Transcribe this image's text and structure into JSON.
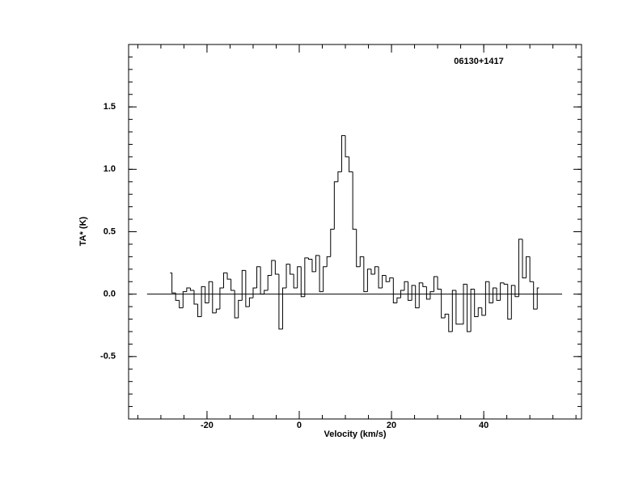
{
  "chart_data": {
    "type": "step",
    "annotation": "06130+1417",
    "xlabel": "Velocity (km/s)",
    "ylabel": "TA* (K)",
    "xlim": [
      -37,
      61.2
    ],
    "ylim": [
      -1,
      2
    ],
    "xticks": [
      -20,
      0,
      20,
      40
    ],
    "yticks": [
      -0.5,
      {
        "value": 0,
        "label": "0.0"
      },
      0.5,
      {
        "value": 1,
        "label": "1.0"
      },
      1.5
    ],
    "color": "#000000",
    "baseline": {
      "y": 0,
      "x": [
        -33,
        57
      ]
    },
    "x": [
      -28.0,
      -27.2,
      -26.4,
      -25.6,
      -24.8,
      -24.0,
      -23.2,
      -22.4,
      -21.6,
      -20.8,
      -20.0,
      -19.2,
      -18.4,
      -17.6,
      -16.8,
      -16.0,
      -15.2,
      -14.4,
      -13.6,
      -12.8,
      -12.0,
      -11.2,
      -10.4,
      -9.6,
      -8.8,
      -8.0,
      -7.2,
      -6.4,
      -5.6,
      -4.8,
      -4.0,
      -3.2,
      -2.4,
      -1.6,
      -0.8,
      0.0,
      0.8,
      1.6,
      2.4,
      3.2,
      4.0,
      4.8,
      5.6,
      6.4,
      7.2,
      8.0,
      8.8,
      9.6,
      10.4,
      11.2,
      12.0,
      12.8,
      13.6,
      14.4,
      15.2,
      16.0,
      16.8,
      17.6,
      18.4,
      19.2,
      20.0,
      20.8,
      21.6,
      22.4,
      23.2,
      24.0,
      24.8,
      25.6,
      26.4,
      27.2,
      28.0,
      28.8,
      29.6,
      30.4,
      31.2,
      32.0,
      32.8,
      33.6,
      34.4,
      35.2,
      36.0,
      36.8,
      37.6,
      38.4,
      39.2,
      40.0,
      40.8,
      41.6,
      42.4,
      43.2,
      44.0,
      44.8,
      45.6,
      46.4,
      47.2,
      48.0,
      48.8,
      49.6,
      50.4,
      51.2,
      52.0
    ],
    "values": [
      0.17,
      0.01,
      -0.05,
      -0.11,
      0.02,
      0.05,
      0.03,
      -0.08,
      -0.18,
      0.06,
      -0.07,
      0.1,
      -0.15,
      -0.12,
      0.05,
      0.17,
      0.12,
      0.03,
      -0.19,
      -0.05,
      0.19,
      -0.1,
      -0.03,
      0.05,
      0.22,
      0.0,
      0.03,
      0.15,
      0.27,
      0.16,
      -0.28,
      0.05,
      0.24,
      0.16,
      0.05,
      0.22,
      -0.02,
      0.29,
      0.28,
      0.18,
      0.31,
      0.02,
      0.22,
      0.3,
      0.52,
      0.9,
      0.98,
      1.27,
      1.1,
      0.98,
      0.52,
      0.22,
      0.3,
      0.02,
      0.2,
      0.16,
      0.22,
      0.05,
      0.15,
      0.1,
      0.13,
      -0.07,
      -0.03,
      0.03,
      0.1,
      -0.05,
      0.07,
      -0.11,
      0.09,
      0.06,
      -0.04,
      0.02,
      0.14,
      0.04,
      -0.19,
      -0.16,
      -0.3,
      0.03,
      -0.24,
      -0.24,
      0.08,
      -0.3,
      0.04,
      -0.18,
      -0.11,
      -0.17,
      0.1,
      -0.07,
      0.05,
      -0.05,
      0.09,
      0.08,
      -0.2,
      0.07,
      -0.02,
      0.44,
      0.13,
      0.3,
      0.1,
      -0.12,
      0.05
    ]
  }
}
